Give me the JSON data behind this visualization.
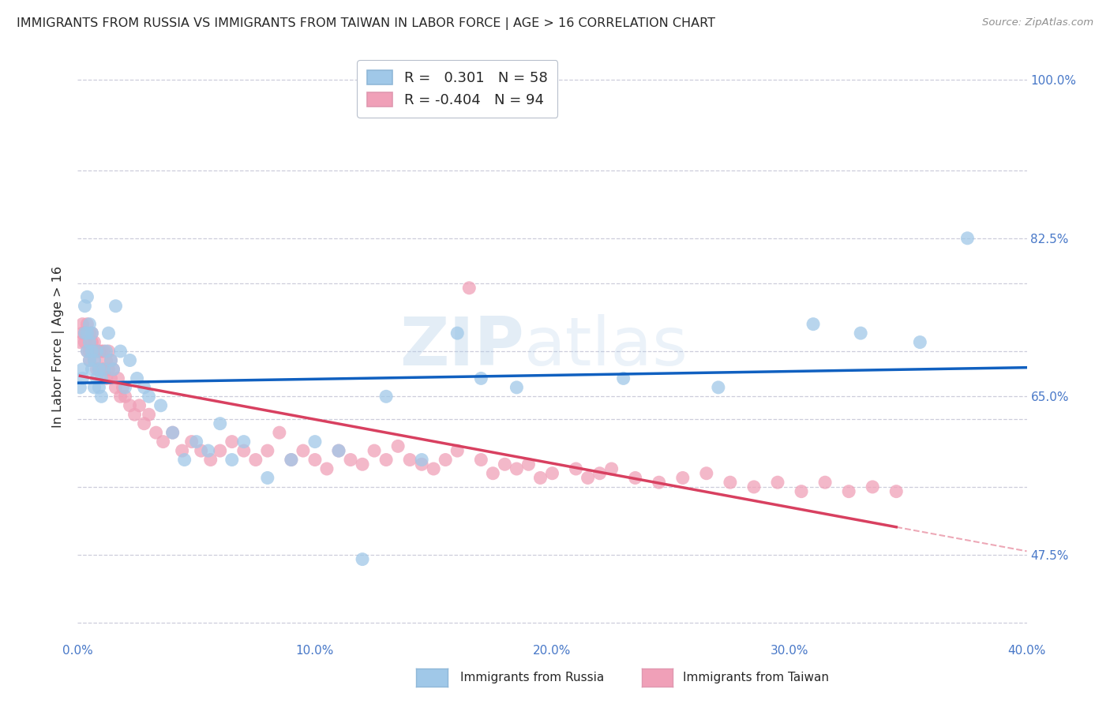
{
  "title": "IMMIGRANTS FROM RUSSIA VS IMMIGRANTS FROM TAIWAN IN LABOR FORCE | AGE > 16 CORRELATION CHART",
  "source": "Source: ZipAtlas.com",
  "ylabel": "In Labor Force | Age > 16",
  "xlim": [
    0.0,
    0.4
  ],
  "ylim": [
    0.38,
    1.03
  ],
  "russia_R": 0.301,
  "russia_N": 58,
  "taiwan_R": -0.404,
  "taiwan_N": 94,
  "russia_color": "#a0c8e8",
  "taiwan_color": "#f0a0b8",
  "russia_line_color": "#1060c0",
  "taiwan_line_color": "#d84060",
  "background_color": "#ffffff",
  "grid_color": "#c8c8d8",
  "title_color": "#282828",
  "axis_label_color": "#4878c8",
  "ytick_positions": [
    0.4,
    0.475,
    0.55,
    0.625,
    0.65,
    0.7,
    0.775,
    0.825,
    0.9,
    1.0
  ],
  "ytick_labels": [
    "",
    "47.5%",
    "",
    "",
    "65.0%",
    "",
    "",
    "82.5%",
    "",
    "100.0%"
  ],
  "xtick_positions": [
    0.0,
    0.05,
    0.1,
    0.15,
    0.2,
    0.25,
    0.3,
    0.35,
    0.4
  ],
  "xtick_labels": [
    "0.0%",
    "",
    "10.0%",
    "",
    "20.0%",
    "",
    "30.0%",
    "",
    "40.0%"
  ],
  "russia_x": [
    0.001,
    0.002,
    0.002,
    0.003,
    0.003,
    0.004,
    0.004,
    0.004,
    0.005,
    0.005,
    0.005,
    0.006,
    0.006,
    0.006,
    0.007,
    0.007,
    0.008,
    0.008,
    0.009,
    0.009,
    0.01,
    0.01,
    0.011,
    0.012,
    0.013,
    0.014,
    0.015,
    0.016,
    0.018,
    0.02,
    0.022,
    0.025,
    0.028,
    0.03,
    0.035,
    0.04,
    0.045,
    0.05,
    0.055,
    0.06,
    0.065,
    0.07,
    0.08,
    0.09,
    0.1,
    0.11,
    0.12,
    0.13,
    0.145,
    0.16,
    0.17,
    0.185,
    0.23,
    0.27,
    0.31,
    0.33,
    0.355,
    0.375
  ],
  "russia_y": [
    0.66,
    0.67,
    0.68,
    0.72,
    0.75,
    0.7,
    0.72,
    0.76,
    0.69,
    0.71,
    0.73,
    0.68,
    0.7,
    0.72,
    0.66,
    0.69,
    0.67,
    0.7,
    0.66,
    0.68,
    0.65,
    0.67,
    0.68,
    0.7,
    0.72,
    0.69,
    0.68,
    0.75,
    0.7,
    0.66,
    0.69,
    0.67,
    0.66,
    0.65,
    0.64,
    0.61,
    0.58,
    0.6,
    0.59,
    0.62,
    0.58,
    0.6,
    0.56,
    0.58,
    0.6,
    0.59,
    0.47,
    0.65,
    0.58,
    0.72,
    0.67,
    0.66,
    0.67,
    0.66,
    0.73,
    0.72,
    0.71,
    0.825
  ],
  "taiwan_x": [
    0.001,
    0.002,
    0.002,
    0.003,
    0.003,
    0.004,
    0.004,
    0.004,
    0.005,
    0.005,
    0.005,
    0.006,
    0.006,
    0.006,
    0.007,
    0.007,
    0.007,
    0.008,
    0.008,
    0.009,
    0.009,
    0.01,
    0.01,
    0.011,
    0.011,
    0.012,
    0.012,
    0.013,
    0.013,
    0.014,
    0.014,
    0.015,
    0.016,
    0.017,
    0.018,
    0.019,
    0.02,
    0.022,
    0.024,
    0.026,
    0.028,
    0.03,
    0.033,
    0.036,
    0.04,
    0.044,
    0.048,
    0.052,
    0.056,
    0.06,
    0.065,
    0.07,
    0.075,
    0.08,
    0.085,
    0.09,
    0.095,
    0.1,
    0.105,
    0.11,
    0.115,
    0.12,
    0.125,
    0.13,
    0.135,
    0.14,
    0.145,
    0.15,
    0.155,
    0.16,
    0.165,
    0.17,
    0.175,
    0.18,
    0.185,
    0.19,
    0.195,
    0.2,
    0.21,
    0.215,
    0.22,
    0.225,
    0.235,
    0.245,
    0.255,
    0.265,
    0.275,
    0.285,
    0.295,
    0.305,
    0.315,
    0.325,
    0.335,
    0.345
  ],
  "taiwan_y": [
    0.71,
    0.72,
    0.73,
    0.71,
    0.72,
    0.7,
    0.72,
    0.73,
    0.69,
    0.7,
    0.72,
    0.7,
    0.71,
    0.72,
    0.69,
    0.7,
    0.71,
    0.68,
    0.7,
    0.68,
    0.7,
    0.68,
    0.7,
    0.68,
    0.7,
    0.67,
    0.69,
    0.68,
    0.7,
    0.67,
    0.69,
    0.68,
    0.66,
    0.67,
    0.65,
    0.66,
    0.65,
    0.64,
    0.63,
    0.64,
    0.62,
    0.63,
    0.61,
    0.6,
    0.61,
    0.59,
    0.6,
    0.59,
    0.58,
    0.59,
    0.6,
    0.59,
    0.58,
    0.59,
    0.61,
    0.58,
    0.59,
    0.58,
    0.57,
    0.59,
    0.58,
    0.575,
    0.59,
    0.58,
    0.595,
    0.58,
    0.575,
    0.57,
    0.58,
    0.59,
    0.77,
    0.58,
    0.565,
    0.575,
    0.57,
    0.575,
    0.56,
    0.565,
    0.57,
    0.56,
    0.565,
    0.57,
    0.56,
    0.555,
    0.56,
    0.565,
    0.555,
    0.55,
    0.555,
    0.545,
    0.555,
    0.545,
    0.55,
    0.545
  ]
}
